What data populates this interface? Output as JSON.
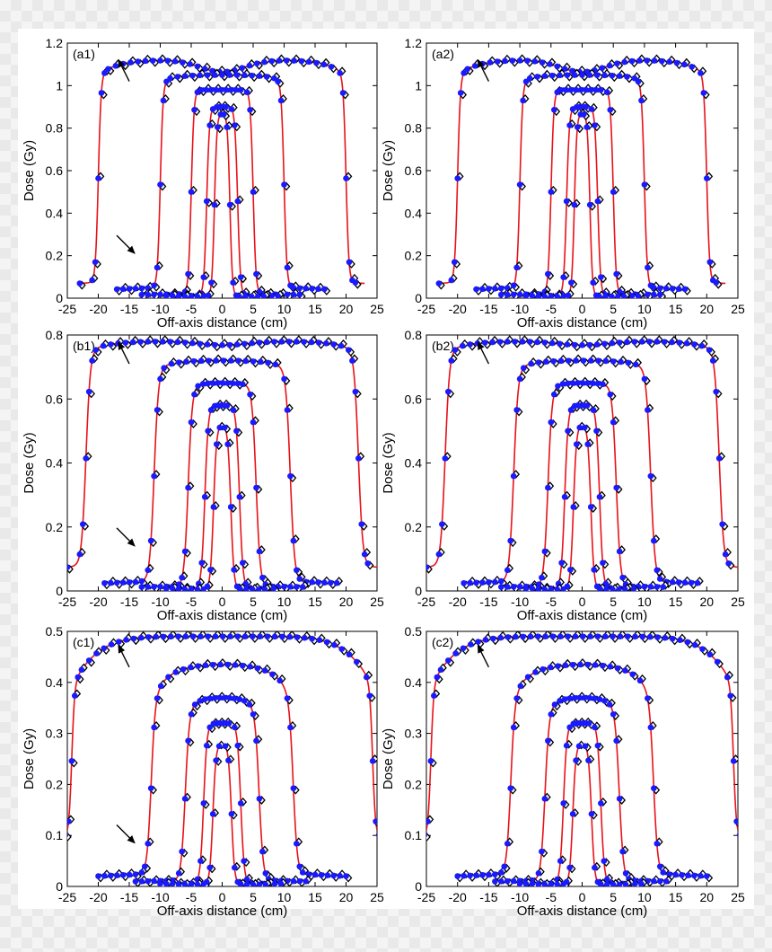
{
  "figure": {
    "background": "#ffffff",
    "curve_color": "#e8121a",
    "mc_marker_color": "#1a1aff",
    "meas_marker_color": "#000000",
    "arrow_color": "#000000"
  },
  "chart_data": [
    {
      "id": "a1",
      "type": "line",
      "panel_label": "(a1)",
      "xlabel": "Off-axis distance (cm)",
      "ylabel": "Dose (Gy)",
      "xlim": [
        -25,
        25
      ],
      "ylim": [
        0,
        1.2
      ],
      "xticks": [
        "-25",
        "-20",
        "-15",
        "-10",
        "-5",
        "0",
        "5",
        "10",
        "15",
        "20",
        "25"
      ],
      "yticks": [
        "0",
        "0.2",
        "0.4",
        "0.6",
        "0.8",
        "1",
        "1.2"
      ],
      "arrows": [
        {
          "x": -15,
          "y": 1.02,
          "to": "up-right"
        },
        {
          "x": -15,
          "y": 0.27,
          "to": "down-right"
        }
      ],
      "fields": [
        {
          "half_width": 20,
          "peak": 1.12,
          "edge_dip": 0.94,
          "center_dip": 0.95,
          "tail": 0.075,
          "x_max": 23,
          "penumbra": 0.45
        },
        {
          "half_width": 10,
          "peak": 1.05,
          "edge_dip": 0.98,
          "center_dip": 1.0,
          "tail": 0.05,
          "x_max": 17,
          "penumbra": 0.45
        },
        {
          "half_width": 5,
          "peak": 0.98,
          "edge_dip": 1.0,
          "center_dip": 1.0,
          "tail": 0.02,
          "x_max": 13,
          "penumbra": 0.45
        },
        {
          "half_width": 2.5,
          "peak": 0.9,
          "edge_dip": 1.0,
          "center_dip": 1.0,
          "tail": 0.012,
          "x_max": 9,
          "penumbra": 0.45
        },
        {
          "half_width": 1.25,
          "peak": 0.87,
          "edge_dip": 1.0,
          "center_dip": 1.0,
          "tail": 0.008,
          "x_max": 7,
          "penumbra": 0.4
        }
      ]
    },
    {
      "id": "a2",
      "type": "line",
      "panel_label": "(a2)",
      "xlabel": "Off-axis distance (cm)",
      "ylabel": "Dose (Gy)",
      "xlim": [
        -25,
        25
      ],
      "ylim": [
        0,
        1.2
      ],
      "xticks": [
        "-25",
        "-20",
        "-15",
        "-10",
        "-5",
        "0",
        "5",
        "10",
        "15",
        "20",
        "25"
      ],
      "yticks": [
        "0",
        "0.2",
        "0.4",
        "0.6",
        "0.8",
        "1",
        "1.2"
      ],
      "arrows": [
        {
          "x": -15,
          "y": 1.02,
          "to": "up-right"
        }
      ],
      "fields": [
        {
          "half_width": 20,
          "peak": 1.12,
          "edge_dip": 0.94,
          "center_dip": 0.95,
          "tail": 0.075,
          "x_max": 23,
          "penumbra": 0.45
        },
        {
          "half_width": 10,
          "peak": 1.05,
          "edge_dip": 0.98,
          "center_dip": 1.0,
          "tail": 0.05,
          "x_max": 17,
          "penumbra": 0.45
        },
        {
          "half_width": 5,
          "peak": 0.98,
          "edge_dip": 1.0,
          "center_dip": 1.0,
          "tail": 0.02,
          "x_max": 13,
          "penumbra": 0.45
        },
        {
          "half_width": 2.5,
          "peak": 0.9,
          "edge_dip": 1.0,
          "center_dip": 1.0,
          "tail": 0.012,
          "x_max": 9,
          "penumbra": 0.45
        },
        {
          "half_width": 1.25,
          "peak": 0.87,
          "edge_dip": 1.0,
          "center_dip": 1.0,
          "tail": 0.008,
          "x_max": 7,
          "penumbra": 0.4
        }
      ]
    },
    {
      "id": "b1",
      "type": "line",
      "panel_label": "(b1)",
      "xlabel": "Off-axis distance (cm)",
      "ylabel": "Dose (Gy)",
      "xlim": [
        -25,
        25
      ],
      "ylim": [
        0,
        0.8
      ],
      "xticks": [
        "-25",
        "-20",
        "-15",
        "-10",
        "-5",
        "0",
        "5",
        "10",
        "15",
        "20",
        "25"
      ],
      "yticks": [
        "0",
        "0.2",
        "0.4",
        "0.6",
        "0.8"
      ],
      "arrows": [
        {
          "x": -15,
          "y": 0.71,
          "to": "up-right"
        },
        {
          "x": -15,
          "y": 0.18,
          "to": "down-right"
        }
      ],
      "fields": [
        {
          "half_width": 22,
          "peak": 0.78,
          "edge_dip": 0.96,
          "center_dip": 0.985,
          "tail": 0.08,
          "x_max": 25,
          "penumbra": 0.7
        },
        {
          "half_width": 11,
          "peak": 0.72,
          "edge_dip": 0.97,
          "center_dip": 1.0,
          "tail": 0.03,
          "x_max": 19,
          "penumbra": 0.7
        },
        {
          "half_width": 5.5,
          "peak": 0.65,
          "edge_dip": 0.98,
          "center_dip": 1.0,
          "tail": 0.015,
          "x_max": 13,
          "penumbra": 0.65
        },
        {
          "half_width": 2.8,
          "peak": 0.58,
          "edge_dip": 1.0,
          "center_dip": 1.0,
          "tail": 0.008,
          "x_max": 9,
          "penumbra": 0.55
        },
        {
          "half_width": 1.4,
          "peak": 0.52,
          "edge_dip": 1.0,
          "center_dip": 1.0,
          "tail": 0.005,
          "x_max": 7,
          "penumbra": 0.5
        }
      ]
    },
    {
      "id": "b2",
      "type": "line",
      "panel_label": "(b2)",
      "xlabel": "Off-axis distance (cm)",
      "ylabel": "Dose (Gy)",
      "xlim": [
        -25,
        25
      ],
      "ylim": [
        0,
        0.8
      ],
      "xticks": [
        "-25",
        "-20",
        "-15",
        "-10",
        "-5",
        "0",
        "5",
        "10",
        "15",
        "20",
        "25"
      ],
      "yticks": [
        "0",
        "0.2",
        "0.4",
        "0.6",
        "0.8"
      ],
      "arrows": [
        {
          "x": -15,
          "y": 0.71,
          "to": "up-right"
        }
      ],
      "fields": [
        {
          "half_width": 22,
          "peak": 0.78,
          "edge_dip": 0.96,
          "center_dip": 0.985,
          "tail": 0.08,
          "x_max": 25,
          "penumbra": 0.7
        },
        {
          "half_width": 11,
          "peak": 0.72,
          "edge_dip": 0.97,
          "center_dip": 1.0,
          "tail": 0.03,
          "x_max": 19,
          "penumbra": 0.7
        },
        {
          "half_width": 5.5,
          "peak": 0.65,
          "edge_dip": 0.98,
          "center_dip": 1.0,
          "tail": 0.015,
          "x_max": 13,
          "penumbra": 0.65
        },
        {
          "half_width": 2.8,
          "peak": 0.58,
          "edge_dip": 1.0,
          "center_dip": 1.0,
          "tail": 0.008,
          "x_max": 9,
          "penumbra": 0.55
        },
        {
          "half_width": 1.4,
          "peak": 0.52,
          "edge_dip": 1.0,
          "center_dip": 1.0,
          "tail": 0.005,
          "x_max": 7,
          "penumbra": 0.5
        }
      ]
    },
    {
      "id": "c1",
      "type": "line",
      "panel_label": "(c1)",
      "xlabel": "Off-axis distance (cm)",
      "ylabel": "Dose (Gy)",
      "xlim": [
        -25,
        25
      ],
      "ylim": [
        0,
        0.5
      ],
      "xticks": [
        "-25",
        "-20",
        "-15",
        "-10",
        "-5",
        "0",
        "5",
        "10",
        "15",
        "20",
        "25"
      ],
      "yticks": [
        "0",
        "0.1",
        "0.2",
        "0.3",
        "0.4",
        "0.5"
      ],
      "arrows": [
        {
          "x": -15,
          "y": 0.43,
          "to": "up-right"
        },
        {
          "x": -15,
          "y": 0.11,
          "to": "down-right"
        }
      ],
      "fields": [
        {
          "half_width": 24.3,
          "peak": 0.49,
          "edge_dip": 0.8,
          "center_dip": 1.0,
          "tail": 0.1,
          "x_max": 25,
          "penumbra": 0.45
        },
        {
          "half_width": 11.5,
          "peak": 0.435,
          "edge_dip": 0.88,
          "center_dip": 1.0,
          "tail": 0.025,
          "x_max": 20,
          "penumbra": 0.65
        },
        {
          "half_width": 6,
          "peak": 0.37,
          "edge_dip": 0.93,
          "center_dip": 1.0,
          "tail": 0.012,
          "x_max": 14,
          "penumbra": 0.65
        },
        {
          "half_width": 3,
          "peak": 0.32,
          "edge_dip": 1.0,
          "center_dip": 1.0,
          "tail": 0.006,
          "x_max": 10,
          "penumbra": 0.55
        },
        {
          "half_width": 1.5,
          "peak": 0.28,
          "edge_dip": 1.0,
          "center_dip": 1.0,
          "tail": 0.004,
          "x_max": 7,
          "penumbra": 0.5
        }
      ]
    },
    {
      "id": "c2",
      "type": "line",
      "panel_label": "(c2)",
      "xlabel": "Off-axis distance (cm)",
      "ylabel": "Dose (Gy)",
      "xlim": [
        -25,
        25
      ],
      "ylim": [
        0,
        0.5
      ],
      "xticks": [
        "-25",
        "-20",
        "-15",
        "-10",
        "-5",
        "0",
        "5",
        "10",
        "15",
        "20",
        "25"
      ],
      "yticks": [
        "0",
        "0.1",
        "0.2",
        "0.3",
        "0.4",
        "0.5"
      ],
      "arrows": [
        {
          "x": -15,
          "y": 0.43,
          "to": "up-right"
        }
      ],
      "fields": [
        {
          "half_width": 24.3,
          "peak": 0.49,
          "edge_dip": 0.8,
          "center_dip": 1.0,
          "tail": 0.1,
          "x_max": 25,
          "penumbra": 0.45
        },
        {
          "half_width": 11.5,
          "peak": 0.435,
          "edge_dip": 0.88,
          "center_dip": 1.0,
          "tail": 0.025,
          "x_max": 20,
          "penumbra": 0.65
        },
        {
          "half_width": 6,
          "peak": 0.37,
          "edge_dip": 0.93,
          "center_dip": 1.0,
          "tail": 0.012,
          "x_max": 14,
          "penumbra": 0.65
        },
        {
          "half_width": 3,
          "peak": 0.32,
          "edge_dip": 1.0,
          "center_dip": 1.0,
          "tail": 0.006,
          "x_max": 10,
          "penumbra": 0.55
        },
        {
          "half_width": 1.5,
          "peak": 0.28,
          "edge_dip": 1.0,
          "center_dip": 1.0,
          "tail": 0.004,
          "x_max": 7,
          "penumbra": 0.5
        }
      ]
    }
  ]
}
